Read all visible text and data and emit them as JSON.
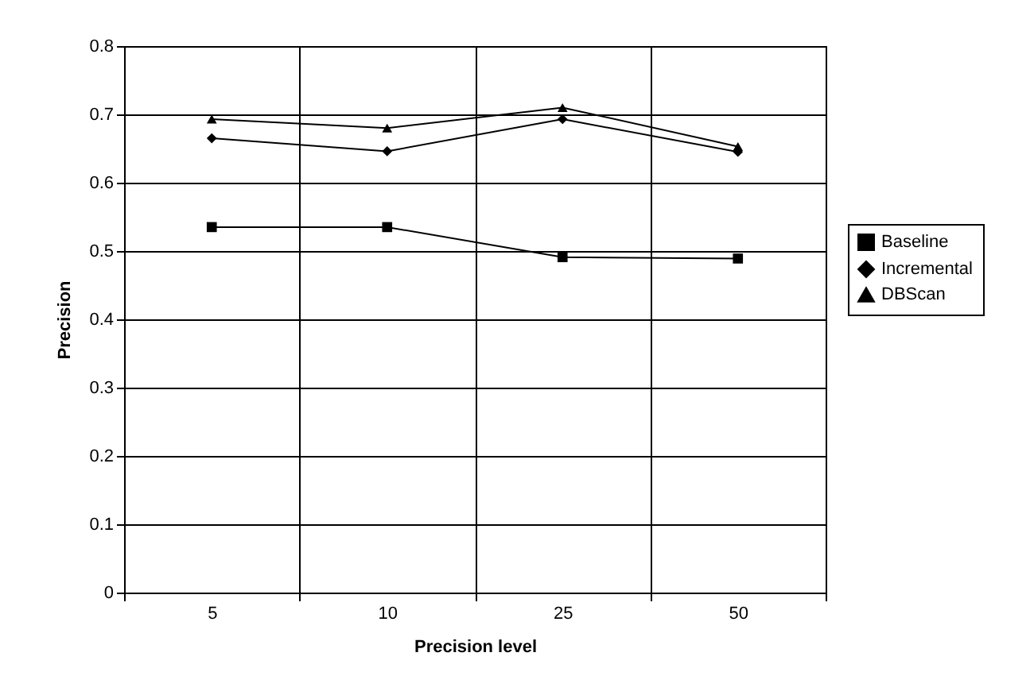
{
  "chart_data": {
    "type": "line",
    "xlabel": "Precision level",
    "ylabel": "Precision",
    "categories": [
      "5",
      "10",
      "25",
      "50"
    ],
    "ylim": [
      0,
      0.8
    ],
    "yticks": [
      0,
      0.1,
      0.2,
      0.3,
      0.4,
      0.5,
      0.6,
      0.7,
      0.8
    ],
    "grid": true,
    "legend": "right",
    "line_style": "solid",
    "series": [
      {
        "name": "Baseline",
        "color": "#000000",
        "marker": "square",
        "values": [
          0.535,
          0.535,
          0.491,
          0.489
        ]
      },
      {
        "name": "Incremental",
        "color": "#000000",
        "marker": "diamond",
        "values": [
          0.665,
          0.646,
          0.693,
          0.645
        ]
      },
      {
        "name": "DBScan",
        "color": "#000000",
        "marker": "triangle",
        "values": [
          0.693,
          0.68,
          0.71,
          0.653
        ]
      }
    ]
  }
}
